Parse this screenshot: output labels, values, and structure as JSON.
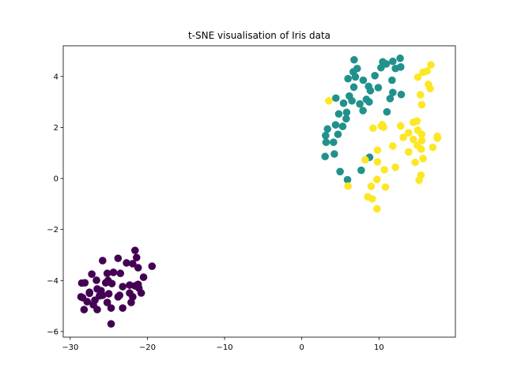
{
  "chart_data": {
    "type": "scatter",
    "title": "t-SNE visualisation of Iris data",
    "xlabel": "",
    "ylabel": "",
    "xlim": [
      -30.9,
      19.9
    ],
    "ylim": [
      -6.22,
      5.2
    ],
    "xticks": [
      -30,
      -20,
      -10,
      0,
      10
    ],
    "yticks": [
      -6,
      -4,
      -2,
      0,
      2,
      4
    ],
    "grid": false,
    "legend": "none",
    "series": [
      {
        "color": "#440154",
        "points": [
          [
            -21.6,
            -2.82
          ],
          [
            -21.4,
            -3.1
          ],
          [
            -19.4,
            -3.44
          ],
          [
            -21.2,
            -3.5
          ],
          [
            -22.7,
            -3.31
          ],
          [
            -21.9,
            -3.34
          ],
          [
            -23.8,
            -3.13
          ],
          [
            -25.8,
            -3.22
          ],
          [
            -23.5,
            -3.72
          ],
          [
            -24.4,
            -3.68
          ],
          [
            -27.2,
            -3.75
          ],
          [
            -25.2,
            -3.72
          ],
          [
            -20.5,
            -3.87
          ],
          [
            -22.3,
            -4.18
          ],
          [
            -21.6,
            -4.21
          ],
          [
            -21.1,
            -4.3
          ],
          [
            -23.2,
            -4.24
          ],
          [
            -24.6,
            -4.12
          ],
          [
            -26.6,
            -3.99
          ],
          [
            -28.1,
            -4.09
          ],
          [
            -25.4,
            -4.09
          ],
          [
            -26.5,
            -4.33
          ],
          [
            -27.5,
            -4.46
          ],
          [
            -25.8,
            -4.58
          ],
          [
            -25.0,
            -4.52
          ],
          [
            -23.8,
            -4.64
          ],
          [
            -22.3,
            -4.49
          ],
          [
            -20.8,
            -4.49
          ],
          [
            -22.1,
            -4.86
          ],
          [
            -23.2,
            -5.08
          ],
          [
            -25.2,
            -4.86
          ],
          [
            -26.8,
            -4.77
          ],
          [
            -27.8,
            -4.83
          ],
          [
            -28.6,
            -4.64
          ],
          [
            -28.4,
            -4.67
          ],
          [
            -28.2,
            -5.14
          ],
          [
            -26.5,
            -5.14
          ],
          [
            -21.9,
            -4.64
          ],
          [
            -23.6,
            -4.58
          ],
          [
            -24.7,
            -5.08
          ],
          [
            -24.7,
            -5.7
          ],
          [
            -21.2,
            -4.15
          ],
          [
            -27.5,
            -4.5
          ],
          [
            -26.2,
            -4.6
          ],
          [
            -25.1,
            -4.0
          ],
          [
            -26.0,
            -4.4
          ],
          [
            -27.0,
            -4.95
          ],
          [
            -28.5,
            -4.1
          ]
        ]
      },
      {
        "color": "#21918c",
        "points": [
          [
            6.78,
            4.65
          ],
          [
            7.18,
            4.31
          ],
          [
            6.67,
            4.18
          ],
          [
            6.94,
            3.98
          ],
          [
            5.99,
            3.91
          ],
          [
            7.96,
            3.85
          ],
          [
            9.47,
            4.03
          ],
          [
            10.49,
            4.57
          ],
          [
            10.93,
            4.49
          ],
          [
            11.79,
            4.59
          ],
          [
            12.74,
            4.71
          ],
          [
            10.26,
            4.34
          ],
          [
            12.13,
            4.31
          ],
          [
            12.81,
            4.37
          ],
          [
            11.69,
            3.85
          ],
          [
            6.74,
            3.58
          ],
          [
            8.65,
            3.61
          ],
          [
            8.89,
            3.44
          ],
          [
            9.91,
            3.56
          ],
          [
            6.16,
            3.23
          ],
          [
            6.5,
            3.04
          ],
          [
            4.42,
            3.15
          ],
          [
            5.41,
            2.95
          ],
          [
            7.52,
            2.92
          ],
          [
            8.37,
            3.1
          ],
          [
            8.72,
            3.0
          ],
          [
            7.93,
            2.66
          ],
          [
            11.79,
            3.37
          ],
          [
            11.44,
            3.13
          ],
          [
            12.88,
            3.29
          ],
          [
            11.03,
            2.61
          ],
          [
            4.79,
            2.53
          ],
          [
            5.81,
            2.59
          ],
          [
            5.75,
            2.34
          ],
          [
            4.38,
            2.1
          ],
          [
            5.3,
            2.04
          ],
          [
            4.69,
            1.73
          ],
          [
            3.33,
            1.94
          ],
          [
            3.09,
            1.68
          ],
          [
            3.15,
            1.42
          ],
          [
            4.11,
            1.42
          ],
          [
            3.02,
            0.86
          ],
          [
            4.22,
            0.96
          ],
          [
            4.96,
            0.27
          ],
          [
            5.92,
            -0.05
          ],
          [
            7.7,
            0.32
          ],
          [
            8.78,
            0.83
          ]
        ]
      },
      {
        "color": "#fde725",
        "points": [
          [
            16.73,
            4.45
          ],
          [
            16.22,
            4.21
          ],
          [
            15.71,
            4.16
          ],
          [
            15.03,
            3.97
          ],
          [
            16.4,
            3.69
          ],
          [
            16.63,
            3.52
          ],
          [
            15.37,
            3.28
          ],
          [
            15.54,
            2.89
          ],
          [
            3.5,
            3.04
          ],
          [
            10.42,
            2.11
          ],
          [
            9.23,
            1.97
          ],
          [
            10.59,
            2.01
          ],
          [
            12.81,
            2.06
          ],
          [
            14.45,
            2.2
          ],
          [
            14.92,
            2.25
          ],
          [
            15.03,
            1.89
          ],
          [
            13.84,
            1.79
          ],
          [
            13.15,
            1.61
          ],
          [
            14.45,
            1.53
          ],
          [
            15.54,
            1.73
          ],
          [
            15.54,
            1.48
          ],
          [
            14.96,
            1.3
          ],
          [
            15.47,
            1.15
          ],
          [
            17.58,
            1.58
          ],
          [
            16.97,
            1.22
          ],
          [
            11.79,
            1.27
          ],
          [
            13.84,
            1.04
          ],
          [
            15.71,
            0.78
          ],
          [
            14.69,
            0.63
          ],
          [
            9.81,
            1.11
          ],
          [
            8.21,
            0.73
          ],
          [
            9.81,
            0.65
          ],
          [
            10.7,
            0.34
          ],
          [
            12.13,
            0.44
          ],
          [
            15.44,
            0.13
          ],
          [
            15.2,
            -0.07
          ],
          [
            9.74,
            -0.04
          ],
          [
            8.99,
            -0.31
          ],
          [
            10.83,
            -0.34
          ],
          [
            5.99,
            -0.3
          ],
          [
            8.55,
            -0.72
          ],
          [
            9.13,
            -0.8
          ],
          [
            9.74,
            -1.19
          ],
          [
            17.55,
            1.65
          ],
          [
            10.3,
            2.05
          ]
        ]
      }
    ]
  }
}
